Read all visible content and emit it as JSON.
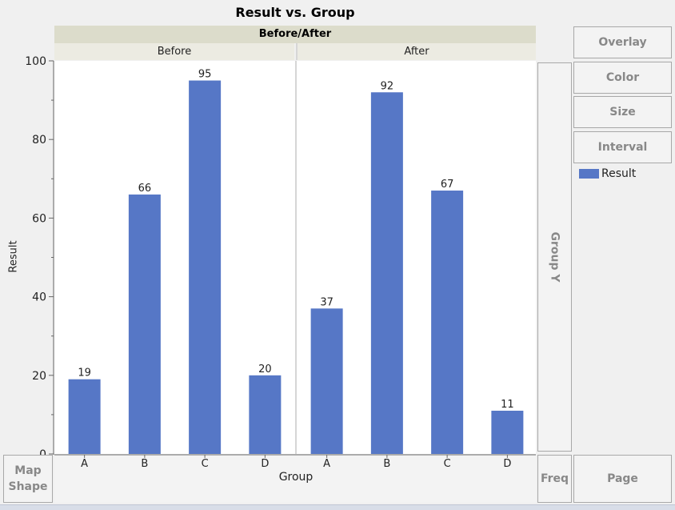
{
  "chart_data": {
    "type": "bar",
    "title": "Result vs. Group",
    "facet_title": "Before/After",
    "xlabel": "Group",
    "ylabel": "Result",
    "ylim": [
      0,
      100
    ],
    "yticks": [
      0,
      20,
      40,
      60,
      80,
      100
    ],
    "categories": [
      "A",
      "B",
      "C",
      "D"
    ],
    "panels": [
      {
        "name": "Before",
        "values": [
          19,
          66,
          95,
          20
        ]
      },
      {
        "name": "After",
        "values": [
          37,
          92,
          67,
          11
        ]
      }
    ],
    "legend": [
      {
        "name": "Result",
        "color": "#5677c6"
      }
    ],
    "grid": false
  },
  "zones": {
    "overlay": "Overlay",
    "color": "Color",
    "size": "Size",
    "interval": "Interval",
    "group_y": "Group Y",
    "map_line1": "Map",
    "map_line2": "Shape",
    "freq": "Freq",
    "page": "Page"
  },
  "colors": {
    "bar": "#5677c6"
  }
}
